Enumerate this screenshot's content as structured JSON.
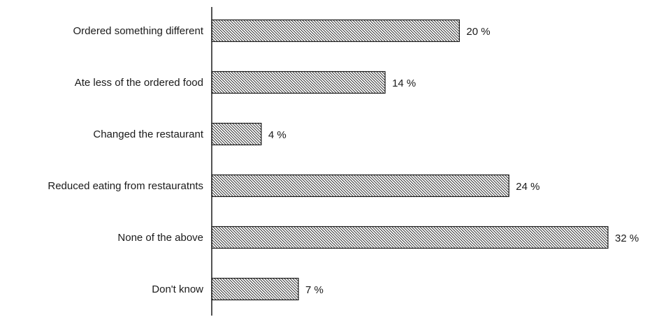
{
  "chart_data": {
    "type": "bar",
    "orientation": "horizontal",
    "title": "",
    "xlabel": "",
    "ylabel": "",
    "categories": [
      "Ordered something different",
      "Ate less of the ordered food",
      "Changed the restaurant",
      "Reduced eating from restauratnts",
      "None of the above",
      "Don't know"
    ],
    "values": [
      20,
      14,
      4,
      24,
      32,
      7
    ],
    "value_labels": [
      "20 %",
      "14 %",
      "4 %",
      "24 %",
      "32 %",
      "7 %"
    ],
    "value_unit": "%",
    "xlim": [
      0,
      32
    ],
    "grid": false,
    "legend": "none",
    "bar_fill": "diagonal-hatch",
    "colors": {
      "bar_stroke": "#1a1a1a",
      "hatch": "#1a1a1a",
      "background": "#ffffff",
      "text": "#1a1a1a"
    }
  }
}
